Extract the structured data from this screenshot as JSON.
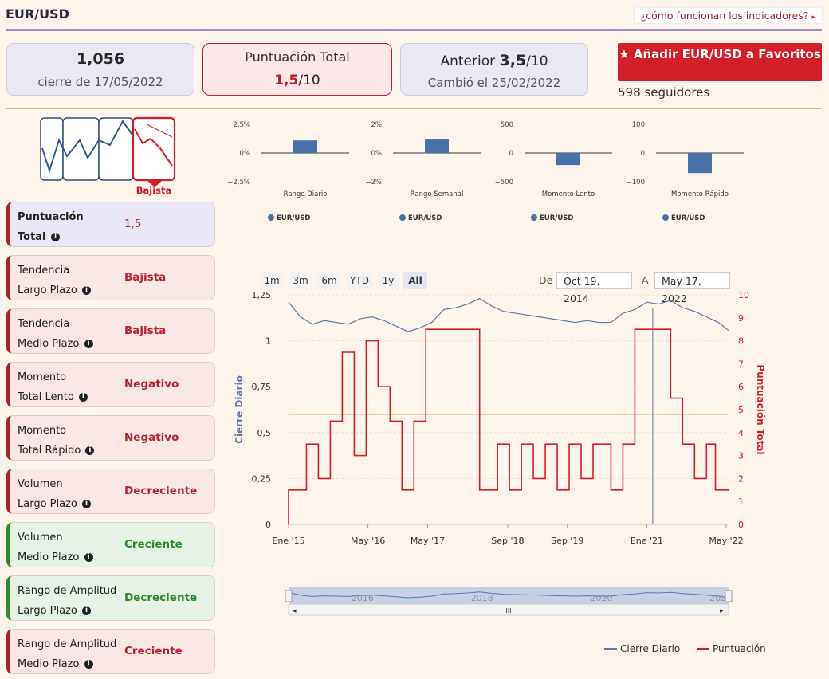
{
  "header": {
    "pair": "EUR/USD",
    "help_link": "¿cómo funcionan los indicadores?",
    "help_arrow": "▸"
  },
  "summary": {
    "close_value": "1,056",
    "close_label": "cierre de 17/05/2022",
    "total_title": "Puntuación Total",
    "total_score": "1,5",
    "total_suffix": "/10",
    "prev_label": "Anterior",
    "prev_score": "3,5",
    "prev_suffix": "/10",
    "prev_changed": "Cambió el 25/02/2022",
    "fav_button": "Añadir EUR/USD a Favoritos",
    "followers": "598 seguidores"
  },
  "trend_icon": {
    "label": "Bajista",
    "color": "#d21f28"
  },
  "scores": [
    {
      "line1": "Puntuación",
      "line2": "Total",
      "value": "1,5",
      "kind": "total"
    },
    {
      "line1": "Tendencia",
      "line2": "Largo Plazo",
      "value": "Bajista",
      "kind": "red"
    },
    {
      "line1": "Tendencia",
      "line2": "Medio Plazo",
      "value": "Bajista",
      "kind": "red"
    },
    {
      "line1": "Momento",
      "line2": "Total Lento",
      "value": "Negativo",
      "kind": "red"
    },
    {
      "line1": "Momento",
      "line2": "Total Rápido",
      "value": "Negativo",
      "kind": "red"
    },
    {
      "line1": "Volumen",
      "line2": "Largo Plazo",
      "value": "Decreciente",
      "kind": "red"
    },
    {
      "line1": "Volumen",
      "line2": "Medio Plazo",
      "value": "Creciente",
      "kind": "green"
    },
    {
      "line1": "Rango de Amplitud",
      "line2": "Largo Plazo",
      "value": "Decreciente",
      "kind": "green"
    },
    {
      "line1": "Rango de Amplitud",
      "line2": "Medio Plazo",
      "value": "Creciente",
      "kind": "red"
    }
  ],
  "range_buttons": [
    "1m",
    "3m",
    "6m",
    "YTD",
    "1y",
    "All"
  ],
  "range_active": "All",
  "date_range": {
    "from_label": "De",
    "from": "Oct 19, 2014",
    "to_label": "A",
    "to": "May 17, 2022"
  },
  "navigator_years": [
    "2016",
    "2018",
    "2020",
    "202"
  ],
  "navigator_grip": "III",
  "chart_data": [
    {
      "type": "bar",
      "title": "",
      "xlabel": "Rango Diario",
      "ylabel": "",
      "yticks": [
        "2,5%",
        "0%",
        "−2,5%"
      ],
      "ylim": [
        -2.5,
        2.5
      ],
      "series": [
        {
          "name": "EUR/USD",
          "values": [
            1.1
          ]
        }
      ]
    },
    {
      "type": "bar",
      "title": "",
      "xlabel": "Rango Semanal",
      "ylabel": "",
      "yticks": [
        "2%",
        "0%",
        "−2%"
      ],
      "ylim": [
        -2,
        2
      ],
      "series": [
        {
          "name": "EUR/USD",
          "values": [
            1.0
          ]
        }
      ]
    },
    {
      "type": "bar",
      "title": "",
      "xlabel": "Momento Lento",
      "ylabel": "",
      "yticks": [
        "500",
        "0",
        "−500"
      ],
      "ylim": [
        -500,
        500
      ],
      "series": [
        {
          "name": "EUR/USD",
          "values": [
            -210
          ]
        }
      ]
    },
    {
      "type": "bar",
      "title": "",
      "xlabel": "Momento Rápido",
      "ylabel": "",
      "yticks": [
        "100",
        "0",
        "−100"
      ],
      "ylim": [
        -100,
        100
      ],
      "series": [
        {
          "name": "EUR/USD",
          "values": [
            -70
          ]
        }
      ]
    },
    {
      "type": "line",
      "title": "",
      "xlabel": "",
      "ylabel": "Cierre Diario",
      "ylabel_right": "Puntuación Total",
      "xticks": [
        "Ene '15",
        "May '16",
        "May '17",
        "Sep '18",
        "Sep '19",
        "Ene '21",
        "May '22"
      ],
      "xtick_years": [
        2015.0,
        2016.33,
        2017.33,
        2018.67,
        2019.67,
        2021.0,
        2022.33
      ],
      "xlim": [
        2015.0,
        2022.37
      ],
      "ylim_left": [
        0,
        1.25
      ],
      "yticks_left": [
        "0",
        "0,25",
        "0,5",
        "0,75",
        "1",
        "1,25"
      ],
      "ylim_right": [
        0,
        10
      ],
      "yticks_right": [
        "0",
        "1",
        "2",
        "3",
        "4",
        "5",
        "6",
        "7",
        "8",
        "9",
        "10"
      ],
      "reference_line": {
        "value": 4.8,
        "axis": "right",
        "color": "#e8a86a"
      },
      "series": [
        {
          "name": "Cierre Diario",
          "color": "#5b7aa8",
          "axis": "left",
          "x": [
            2015.0,
            2015.2,
            2015.4,
            2015.6,
            2015.8,
            2016.0,
            2016.2,
            2016.4,
            2016.6,
            2016.8,
            2017.0,
            2017.2,
            2017.4,
            2017.6,
            2017.8,
            2018.0,
            2018.2,
            2018.4,
            2018.6,
            2018.8,
            2019.0,
            2019.2,
            2019.4,
            2019.6,
            2019.8,
            2020.0,
            2020.2,
            2020.4,
            2020.6,
            2020.8,
            2021.0,
            2021.2,
            2021.4,
            2021.6,
            2021.8,
            2022.0,
            2022.2,
            2022.37
          ],
          "values": [
            1.21,
            1.13,
            1.09,
            1.11,
            1.1,
            1.09,
            1.12,
            1.13,
            1.11,
            1.08,
            1.05,
            1.07,
            1.1,
            1.17,
            1.18,
            1.2,
            1.23,
            1.19,
            1.16,
            1.15,
            1.14,
            1.13,
            1.12,
            1.11,
            1.1,
            1.11,
            1.1,
            1.1,
            1.15,
            1.17,
            1.21,
            1.2,
            1.22,
            1.18,
            1.16,
            1.13,
            1.1,
            1.056
          ]
        },
        {
          "name": "Puntuación",
          "color": "#d21f28",
          "axis": "right",
          "x": [
            2015.0,
            2015.3,
            2015.5,
            2015.7,
            2015.9,
            2016.1,
            2016.3,
            2016.5,
            2016.7,
            2016.9,
            2017.1,
            2017.3,
            2017.5,
            2017.7,
            2017.9,
            2018.2,
            2018.5,
            2018.7,
            2018.9,
            2019.1,
            2019.3,
            2019.5,
            2019.7,
            2019.9,
            2020.1,
            2020.4,
            2020.6,
            2020.8,
            2021.0,
            2021.2,
            2021.4,
            2021.6,
            2021.8,
            2022.0,
            2022.15,
            2022.37
          ],
          "values": [
            1.5,
            3.5,
            2.0,
            4.5,
            7.5,
            3.0,
            8.0,
            6.0,
            4.5,
            1.5,
            4.5,
            8.5,
            8.5,
            8.5,
            8.5,
            1.5,
            3.5,
            1.5,
            3.5,
            2.0,
            3.5,
            1.5,
            3.5,
            2.0,
            3.5,
            1.5,
            3.5,
            8.5,
            8.5,
            8.5,
            5.5,
            3.5,
            2.0,
            3.5,
            1.5,
            1.5
          ]
        }
      ]
    }
  ]
}
